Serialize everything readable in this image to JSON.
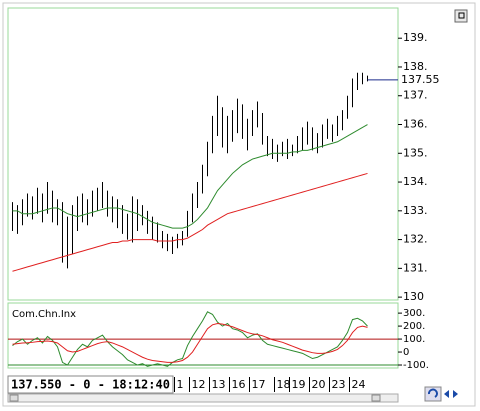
{
  "chart_data": [
    {
      "type": "hilo",
      "categories": [
        null,
        null,
        null,
        null,
        null,
        null,
        null,
        null,
        null,
        null,
        null,
        null,
        null,
        null,
        null,
        null,
        null,
        null,
        null,
        null,
        null,
        null,
        null,
        null,
        null,
        null,
        null,
        null,
        null,
        null,
        null,
        null,
        null,
        "1",
        null,
        null,
        "12",
        null,
        null,
        null,
        "13",
        null,
        null,
        null,
        "16",
        null,
        null,
        null,
        "17",
        null,
        null,
        null,
        null,
        "18",
        null,
        null,
        "19",
        null,
        null,
        null,
        "20",
        null,
        null,
        null,
        "23",
        null,
        null,
        null,
        "24",
        null,
        null,
        null
      ],
      "high": [
        133.3,
        133.2,
        133.4,
        133.6,
        133.5,
        133.8,
        133.6,
        134.0,
        133.7,
        133.4,
        133.3,
        132.8,
        133.2,
        133.5,
        133.6,
        133.4,
        133.7,
        133.8,
        134.0,
        133.7,
        133.5,
        133.4,
        133.2,
        132.9,
        133.5,
        133.4,
        133.2,
        133.0,
        132.8,
        132.6,
        132.3,
        132.2,
        132.1,
        132.2,
        132.3,
        133.0,
        133.6,
        134.0,
        134.6,
        135.4,
        136.3,
        137.0,
        136.6,
        136.3,
        136.5,
        136.9,
        136.7,
        136.2,
        136.5,
        136.8,
        136.4,
        135.6,
        135.5,
        135.3,
        135.4,
        135.5,
        135.3,
        135.6,
        135.9,
        136.1,
        135.9,
        135.7,
        136.0,
        136.2,
        136.0,
        136.3,
        136.5,
        137.0,
        137.6,
        137.8,
        137.8,
        137.7
      ],
      "low": [
        132.3,
        132.2,
        132.5,
        132.8,
        132.7,
        132.9,
        132.6,
        132.9,
        132.6,
        132.5,
        131.2,
        131.0,
        131.5,
        132.3,
        132.6,
        132.5,
        132.8,
        133.0,
        133.1,
        132.8,
        132.6,
        132.4,
        132.2,
        132.0,
        131.9,
        132.3,
        132.5,
        132.2,
        132.0,
        131.9,
        131.7,
        131.6,
        131.5,
        131.7,
        131.8,
        132.1,
        132.6,
        133.1,
        133.6,
        134.2,
        135.0,
        135.6,
        135.2,
        135.0,
        135.4,
        135.7,
        135.5,
        135.1,
        135.6,
        135.9,
        135.3,
        134.9,
        134.8,
        134.7,
        134.9,
        134.8,
        134.9,
        135.0,
        135.1,
        135.3,
        135.1,
        135.0,
        135.2,
        135.5,
        135.4,
        135.6,
        135.8,
        136.2,
        136.6,
        137.2,
        137.4,
        137.5
      ],
      "bar_color": "#000000",
      "series": [
        {
          "color": "#2e8b2e",
          "values": [
            133.0,
            133.0,
            132.9,
            132.9,
            132.9,
            132.95,
            133.0,
            133.05,
            133.1,
            133.1,
            133.0,
            132.9,
            132.85,
            132.8,
            132.85,
            132.9,
            132.95,
            133.0,
            133.05,
            133.1,
            133.1,
            133.1,
            133.05,
            133.0,
            132.95,
            132.9,
            132.8,
            132.7,
            132.6,
            132.55,
            132.5,
            132.45,
            132.4,
            132.4,
            132.4,
            132.45,
            132.55,
            132.7,
            132.9,
            133.1,
            133.4,
            133.7,
            133.9,
            134.1,
            134.3,
            134.45,
            134.6,
            134.7,
            134.8,
            134.85,
            134.9,
            134.95,
            135.0,
            135.0,
            135.0,
            135.0,
            135.05,
            135.05,
            135.1,
            135.1,
            135.15,
            135.2,
            135.25,
            135.3,
            135.35,
            135.4,
            135.5,
            135.6,
            135.7,
            135.8,
            135.9,
            136.0
          ]
        },
        {
          "color": "#e02020",
          "values": [
            130.9,
            130.95,
            131.0,
            131.05,
            131.1,
            131.15,
            131.2,
            131.25,
            131.3,
            131.35,
            131.4,
            131.45,
            131.5,
            131.55,
            131.6,
            131.65,
            131.7,
            131.75,
            131.8,
            131.85,
            131.9,
            131.9,
            131.95,
            131.95,
            132.0,
            132.0,
            132.0,
            132.0,
            132.0,
            131.95,
            131.95,
            131.95,
            131.95,
            132.0,
            132.0,
            132.05,
            132.15,
            132.25,
            132.35,
            132.5,
            132.6,
            132.7,
            132.8,
            132.9,
            132.95,
            133.0,
            133.05,
            133.1,
            133.15,
            133.2,
            133.25,
            133.3,
            133.35,
            133.4,
            133.45,
            133.5,
            133.55,
            133.6,
            133.65,
            133.7,
            133.75,
            133.8,
            133.85,
            133.9,
            133.95,
            134.0,
            134.05,
            134.1,
            134.15,
            134.2,
            134.25,
            134.3
          ]
        }
      ],
      "last": 137.55,
      "last_color": "#1a2a8a",
      "ylim": [
        129.9,
        140.05
      ],
      "yticks": [
        {
          "value": 139,
          "label": "139."
        },
        {
          "value": 138,
          "label": "138."
        },
        {
          "value": 137,
          "label": "137."
        },
        {
          "value": 136,
          "label": "136."
        },
        {
          "value": 135,
          "label": "135."
        },
        {
          "value": 134,
          "label": "134."
        },
        {
          "value": 133,
          "label": "133."
        },
        {
          "value": 132,
          "label": "132."
        },
        {
          "value": 131,
          "label": "131."
        },
        {
          "value": 130,
          "label": "130"
        }
      ]
    },
    {
      "type": "line",
      "title": "Com.Chn.Inx",
      "series": [
        {
          "color": "#2e8b2e",
          "values": [
            50,
            80,
            100,
            60,
            90,
            110,
            70,
            120,
            90,
            40,
            -80,
            -100,
            -40,
            20,
            60,
            40,
            90,
            110,
            130,
            80,
            40,
            10,
            -20,
            -60,
            -80,
            -100,
            -90,
            -110,
            -100,
            -90,
            -100,
            -110,
            -80,
            -60,
            -50,
            50,
            120,
            180,
            240,
            310,
            290,
            230,
            200,
            220,
            180,
            170,
            150,
            110,
            130,
            140,
            90,
            60,
            50,
            40,
            30,
            20,
            10,
            0,
            -10,
            -30,
            -50,
            -40,
            -20,
            0,
            20,
            40,
            90,
            150,
            250,
            260,
            240,
            200
          ]
        },
        {
          "color": "#e02020",
          "values": [
            60,
            65,
            70,
            72,
            75,
            80,
            82,
            85,
            80,
            70,
            40,
            10,
            0,
            5,
            20,
            35,
            50,
            65,
            75,
            80,
            70,
            55,
            40,
            20,
            0,
            -20,
            -40,
            -55,
            -65,
            -70,
            -75,
            -80,
            -80,
            -75,
            -65,
            -40,
            0,
            60,
            120,
            180,
            210,
            220,
            215,
            205,
            195,
            180,
            165,
            150,
            140,
            135,
            125,
            110,
            95,
            85,
            75,
            60,
            45,
            30,
            15,
            5,
            -5,
            -10,
            -10,
            -5,
            5,
            20,
            50,
            90,
            150,
            190,
            200,
            190
          ]
        }
      ],
      "ref_lines": [
        {
          "value": 100,
          "color": "#b01010"
        },
        {
          "value": -100,
          "color": "#2e8b2e"
        }
      ],
      "ylim": [
        -123,
        378
      ],
      "yticks": [
        {
          "value": 300,
          "label": "300."
        },
        {
          "value": 200,
          "label": "200."
        },
        {
          "value": 100,
          "label": "100."
        },
        0,
        {
          "value": -100,
          "label": "-100."
        }
      ]
    }
  ],
  "status": "137.550 - 0 - 18:12:40"
}
